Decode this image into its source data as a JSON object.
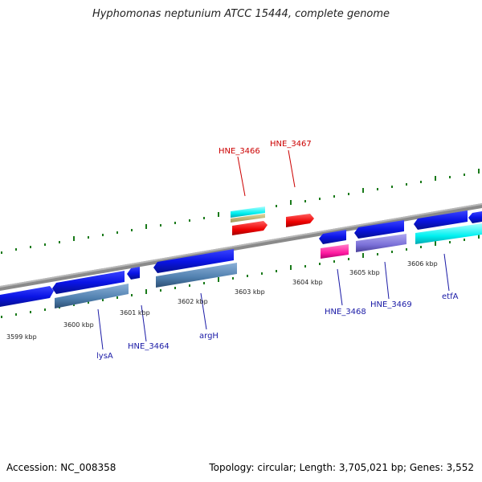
{
  "title": "Hyphomonas neptunium ATCC 15444, complete genome",
  "footer": {
    "accession": "Accession: NC_008358",
    "summary": "Topology: circular; Length: 3,705,021 bp; Genes: 3,552"
  },
  "colors": {
    "backbone": "#8a8a8a",
    "cds": "#0a14e6",
    "blue_gene_label": "#1a1aa6",
    "red_gene_label": "#cc0000",
    "tick": "#1a7a1a"
  },
  "scale_labels": [
    "3599 kbp",
    "3600 kbp",
    "3601 kbp",
    "3602 kbp",
    "3603 kbp",
    "3604 kbp",
    "3605 kbp",
    "3606 kbp"
  ],
  "gene_labels_bottom": [
    "lysA",
    "HNE_3464",
    "argH",
    "HNE_3468",
    "HNE_3469",
    "etfA"
  ],
  "gene_labels_top": [
    "HNE_3466",
    "HNE_3467"
  ]
}
